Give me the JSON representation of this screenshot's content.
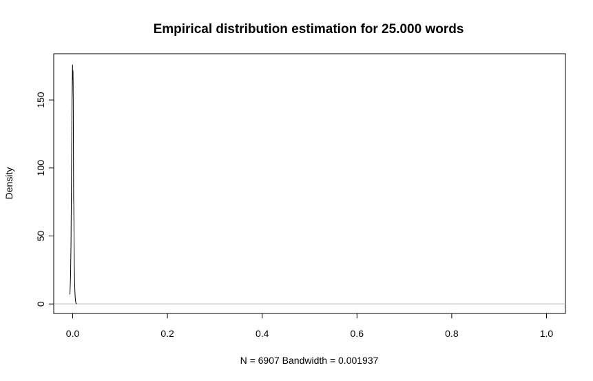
{
  "chart_data": {
    "type": "line",
    "title": "Empirical distribution estimation for 25.000 words",
    "xlabel": "N = 6907   Bandwidth = 0.001937",
    "ylabel": "Density",
    "xlim": [
      -0.04,
      1.04
    ],
    "ylim": [
      -7,
      184
    ],
    "x_ticks": [
      0.0,
      0.2,
      0.4,
      0.6,
      0.8,
      1.0
    ],
    "x_tick_labels": [
      "0.0",
      "0.2",
      "0.4",
      "0.6",
      "0.8",
      "1.0"
    ],
    "y_ticks": [
      0,
      50,
      100,
      150
    ],
    "y_tick_labels": [
      "0",
      "50",
      "100",
      "150"
    ],
    "baseline": 0,
    "grid": false,
    "legend": "none",
    "series": [
      {
        "x": [
          -0.0058,
          -0.0045,
          -0.0035,
          -0.0028,
          -0.002,
          -0.0014,
          -0.0008,
          -0.0003,
          0.0,
          0.0004,
          0.0008,
          0.0012,
          0.0016,
          0.002,
          0.0024,
          0.0029,
          0.0034,
          0.004,
          0.0046,
          0.0053,
          0.0061,
          0.007,
          0.0085
        ],
        "y": [
          7,
          20,
          45,
          82,
          118,
          150,
          164,
          176,
          165,
          172,
          170,
          150,
          110,
          78,
          72,
          50,
          30,
          18,
          10,
          5,
          2,
          0.5,
          0
        ]
      }
    ],
    "colors": {
      "line": "#000000",
      "baseline": "#bebebe",
      "frame": "#000000"
    }
  }
}
